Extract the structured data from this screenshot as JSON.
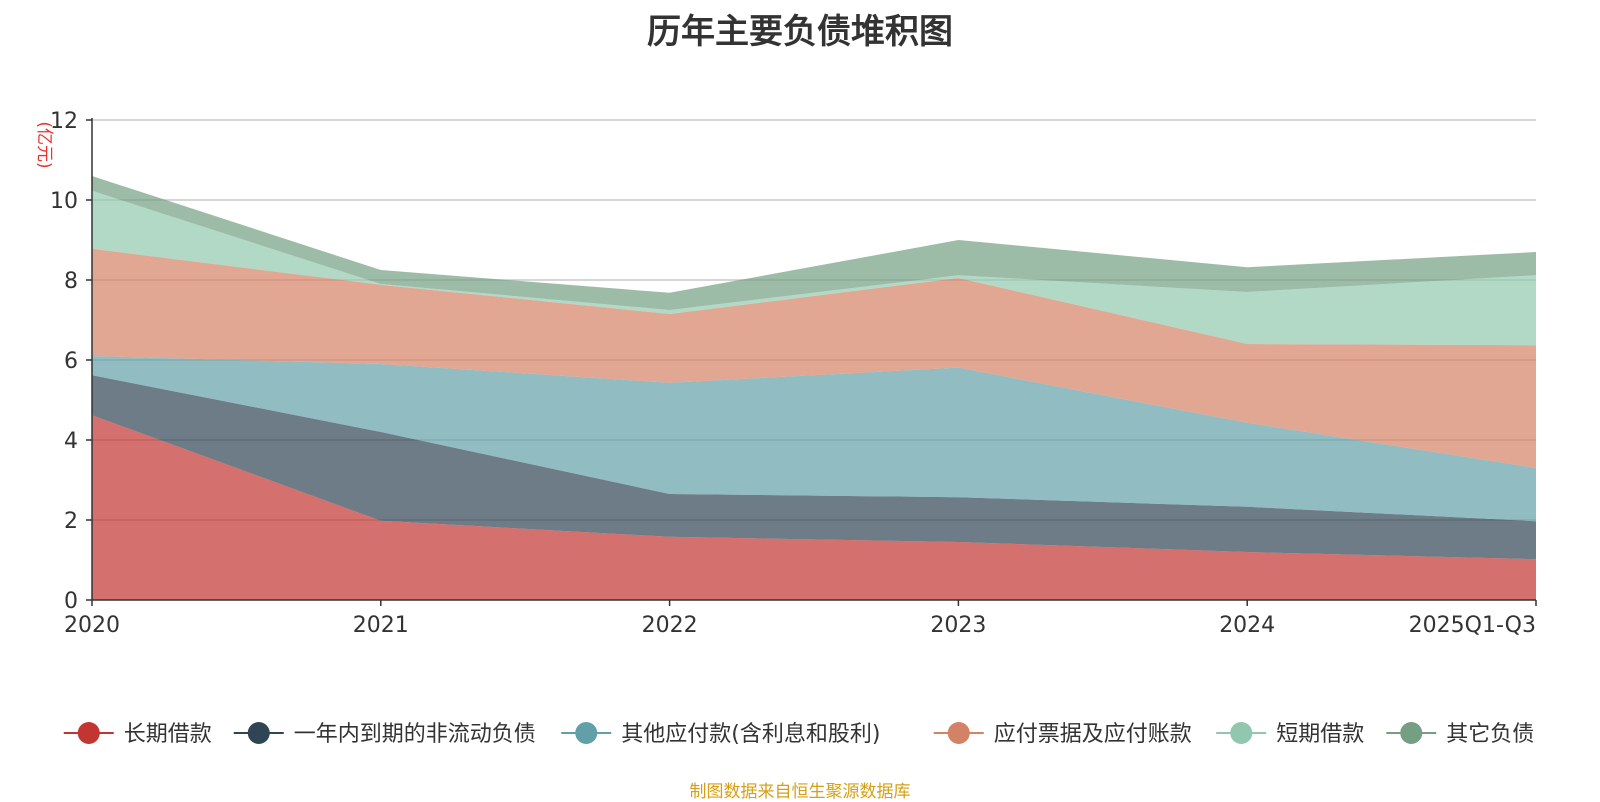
{
  "chart_data": {
    "type": "area",
    "stacked": true,
    "title": "历年主要负债堆积图",
    "ylabel": "(亿元)",
    "xlabel": "",
    "categories": [
      "2020",
      "2021",
      "2022",
      "2023",
      "2024",
      "2025Q1-Q3"
    ],
    "ylim": [
      0,
      12
    ],
    "yticks": [
      0,
      2,
      4,
      6,
      8,
      10,
      12
    ],
    "grid": true,
    "legend_position": "bottom",
    "series": [
      {
        "name": "长期借款",
        "color": "#c23531",
        "values": [
          4.62,
          1.98,
          1.58,
          1.45,
          1.2,
          1.02
        ]
      },
      {
        "name": "一年内到期的非流动负债",
        "color": "#2f4554",
        "values": [
          1.0,
          2.22,
          1.07,
          1.12,
          1.13,
          0.95
        ]
      },
      {
        "name": "其他应付款(含利息和股利)",
        "color": "#61a0a8",
        "values": [
          0.48,
          1.7,
          2.78,
          3.24,
          2.1,
          1.33
        ]
      },
      {
        "name": "应付票据及应付账款",
        "color": "#d48265",
        "values": [
          2.68,
          1.98,
          1.72,
          2.24,
          1.97,
          3.07
        ]
      },
      {
        "name": "短期借款",
        "color": "#91c7ae",
        "values": [
          1.45,
          0.02,
          0.1,
          0.07,
          1.3,
          1.75
        ]
      },
      {
        "name": "其它负债",
        "color": "#749f83",
        "values": [
          0.37,
          0.35,
          0.43,
          0.88,
          0.62,
          0.58
        ]
      }
    ]
  },
  "source_note": "制图数据来自恒生聚源数据库"
}
